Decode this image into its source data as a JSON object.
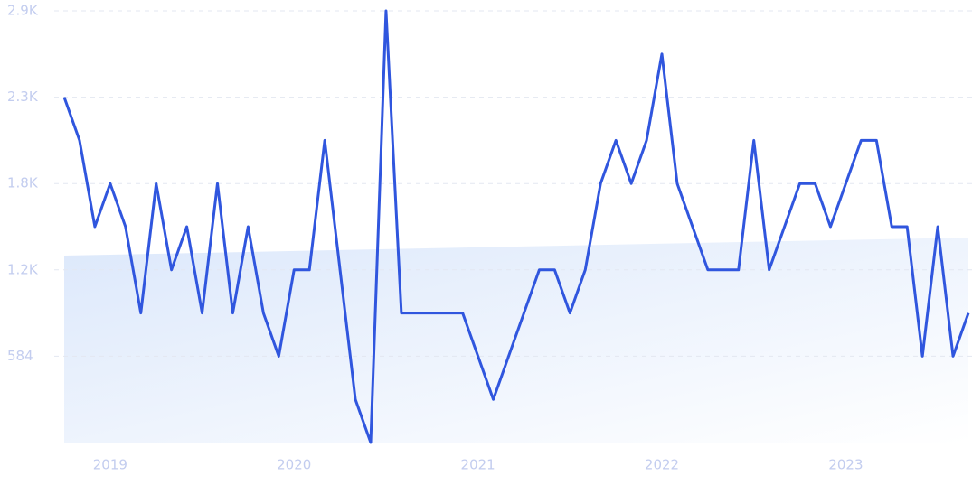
{
  "chart_data": {
    "type": "line",
    "categories": [
      null,
      null,
      null,
      "2019",
      null,
      null,
      null,
      null,
      null,
      null,
      null,
      null,
      null,
      null,
      null,
      "2020",
      null,
      null,
      null,
      null,
      null,
      null,
      null,
      null,
      null,
      null,
      null,
      "2021",
      null,
      null,
      null,
      null,
      null,
      null,
      null,
      null,
      null,
      null,
      null,
      "2022",
      null,
      null,
      null,
      null,
      null,
      null,
      null,
      null,
      null,
      null,
      null,
      "2023",
      null,
      null,
      null,
      null,
      null,
      null,
      null,
      null
    ],
    "series": [
      {
        "color": "#3056de",
        "values": [
          2336,
          2044,
          1460,
          1752,
          1460,
          876,
          1752,
          1168,
          1460,
          876,
          1752,
          876,
          1460,
          876,
          584,
          1168,
          1168,
          2044,
          1168,
          292,
          0,
          2920,
          876,
          876,
          876,
          876,
          876,
          584,
          292,
          584,
          876,
          1168,
          1168,
          876,
          1168,
          1752,
          2044,
          1752,
          2044,
          2628,
          1752,
          1460,
          1168,
          1168,
          1168,
          2044,
          1168,
          1460,
          1752,
          1752,
          1460,
          1752,
          2044,
          2044,
          1460,
          1460,
          584,
          1460,
          584,
          876
        ]
      }
    ],
    "ylim": [
      0,
      2920
    ],
    "yticks": [
      584,
      {
        "value": 1168,
        "label": "1.2K"
      },
      {
        "value": 1752,
        "label": "1.8K"
      },
      {
        "value": 2336,
        "label": "2.3K"
      },
      {
        "value": 2920,
        "label": "2.9K"
      }
    ],
    "grid": true
  }
}
